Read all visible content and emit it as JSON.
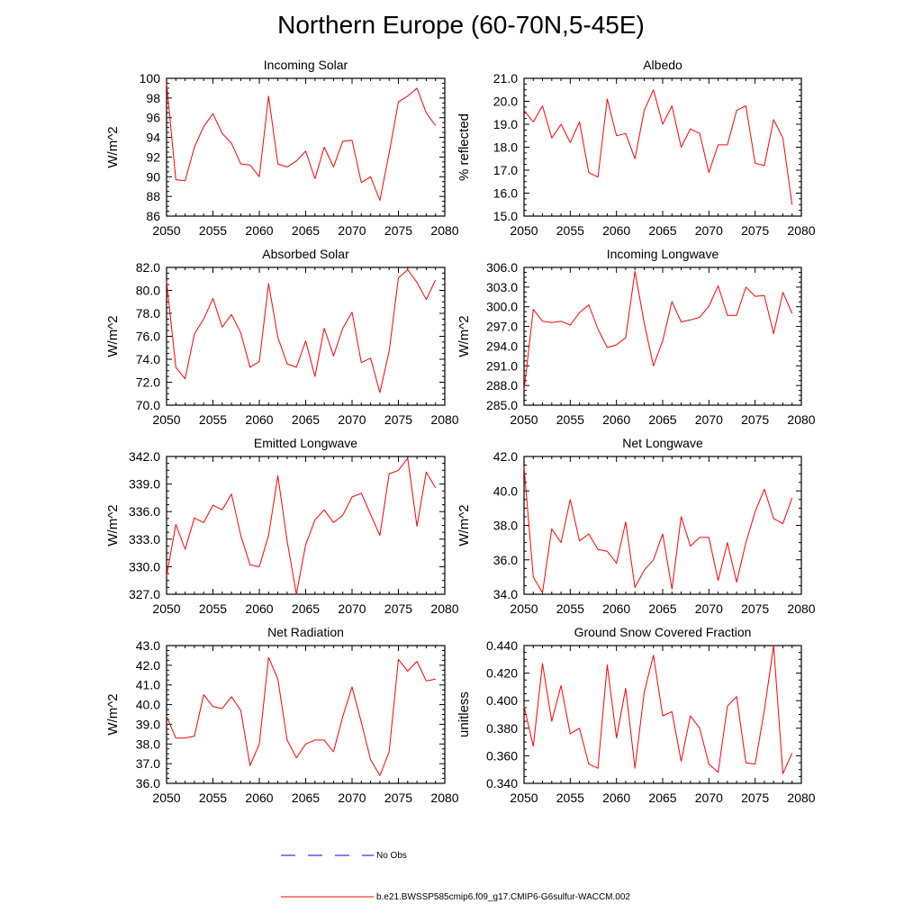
{
  "title": "Northern Europe (60-70N,5-45E)",
  "colors": {
    "series": "#ff0000",
    "obs": "#0000ff",
    "axis": "#000000"
  },
  "legend": {
    "obs_label": "No Obs",
    "model_label": "b.e21.BWSSP585cmip6.f09_g17.CMIP6-G6sulfur-WACCM.002"
  },
  "chart_data": [
    {
      "type": "line",
      "title": "Incoming Solar",
      "ylabel": "W/m^2",
      "xlim": [
        2050,
        2080
      ],
      "ylim": [
        86,
        100
      ],
      "xticks": [
        2050,
        2055,
        2060,
        2065,
        2070,
        2075,
        2080
      ],
      "xtick_labels": [
        "2050",
        "2055",
        "2060",
        "2065",
        "2070",
        "2075",
        "2080"
      ],
      "yticks": [
        86,
        88,
        90,
        92,
        94,
        96,
        98,
        100
      ],
      "ytick_labels": [
        "86",
        "88",
        "90",
        "92",
        "94",
        "96",
        "98",
        "100"
      ],
      "x": [
        2050,
        2051,
        2052,
        2053,
        2054,
        2055,
        2056,
        2057,
        2058,
        2059,
        2060,
        2061,
        2062,
        2063,
        2064,
        2065,
        2066,
        2067,
        2068,
        2069,
        2070,
        2071,
        2072,
        2073,
        2074,
        2075,
        2076,
        2077,
        2078,
        2079
      ],
      "series": [
        {
          "values": [
            99.5,
            89.7,
            89.6,
            93.0,
            95.1,
            96.4,
            94.4,
            93.4,
            91.3,
            91.2,
            90.0,
            98.2,
            91.3,
            91.0,
            91.6,
            92.6,
            89.8,
            93.0,
            91.0,
            93.6,
            93.7,
            89.4,
            90.0,
            87.6,
            92.4,
            97.6,
            98.2,
            99.0,
            96.5,
            95.2
          ]
        }
      ]
    },
    {
      "type": "line",
      "title": "Albedo",
      "ylabel": "% reflected",
      "xlim": [
        2050,
        2080
      ],
      "ylim": [
        15.0,
        21.0
      ],
      "xticks": [
        2050,
        2055,
        2060,
        2065,
        2070,
        2075,
        2080
      ],
      "xtick_labels": [
        "2050",
        "2055",
        "2060",
        "2065",
        "2070",
        "2075",
        "2080"
      ],
      "yticks": [
        15,
        16,
        17,
        18,
        19,
        20,
        21
      ],
      "ytick_labels": [
        "15.0",
        "16.0",
        "17.0",
        "18.0",
        "19.0",
        "20.0",
        "21.0"
      ],
      "x": [
        2050,
        2051,
        2052,
        2053,
        2054,
        2055,
        2056,
        2057,
        2058,
        2059,
        2060,
        2061,
        2062,
        2063,
        2064,
        2065,
        2066,
        2067,
        2068,
        2069,
        2070,
        2071,
        2072,
        2073,
        2074,
        2075,
        2076,
        2077,
        2078,
        2079
      ],
      "series": [
        {
          "values": [
            19.6,
            19.1,
            19.8,
            18.4,
            19.0,
            18.2,
            19.1,
            16.9,
            16.7,
            20.1,
            18.5,
            18.6,
            17.5,
            19.6,
            20.5,
            19.0,
            19.8,
            18.0,
            18.8,
            18.6,
            16.9,
            18.1,
            18.1,
            19.6,
            19.8,
            17.3,
            17.2,
            19.2,
            18.4,
            15.5
          ]
        }
      ]
    },
    {
      "type": "line",
      "title": "Absorbed Solar",
      "ylabel": "W/m^2",
      "xlim": [
        2050,
        2080
      ],
      "ylim": [
        70.0,
        82.0
      ],
      "xticks": [
        2050,
        2055,
        2060,
        2065,
        2070,
        2075,
        2080
      ],
      "xtick_labels": [
        "2050",
        "2055",
        "2060",
        "2065",
        "2070",
        "2075",
        "2080"
      ],
      "yticks": [
        70,
        72,
        74,
        76,
        78,
        80,
        82
      ],
      "ytick_labels": [
        "70.0",
        "72.0",
        "74.0",
        "76.0",
        "78.0",
        "80.0",
        "82.0"
      ],
      "x": [
        2050,
        2051,
        2052,
        2053,
        2054,
        2055,
        2056,
        2057,
        2058,
        2059,
        2060,
        2061,
        2062,
        2063,
        2064,
        2065,
        2066,
        2067,
        2068,
        2069,
        2070,
        2071,
        2072,
        2073,
        2074,
        2075,
        2076,
        2077,
        2078,
        2079
      ],
      "series": [
        {
          "values": [
            80.8,
            73.3,
            72.3,
            76.2,
            77.5,
            79.3,
            76.8,
            77.9,
            76.3,
            73.3,
            73.8,
            80.6,
            75.9,
            73.6,
            73.3,
            75.6,
            72.5,
            76.7,
            74.3,
            76.7,
            78.1,
            73.7,
            74.1,
            71.1,
            74.7,
            81.1,
            81.8,
            80.7,
            79.2,
            80.9
          ]
        }
      ]
    },
    {
      "type": "line",
      "title": "Incoming Longwave",
      "ylabel": "W/m^2",
      "xlim": [
        2050,
        2080
      ],
      "ylim": [
        285.0,
        306.0
      ],
      "xticks": [
        2050,
        2055,
        2060,
        2065,
        2070,
        2075,
        2080
      ],
      "xtick_labels": [
        "2050",
        "2055",
        "2060",
        "2065",
        "2070",
        "2075",
        "2080"
      ],
      "yticks": [
        285,
        288,
        291,
        294,
        297,
        300,
        303,
        306
      ],
      "ytick_labels": [
        "285.0",
        "288.0",
        "291.0",
        "294.0",
        "297.0",
        "300.0",
        "303.0",
        "306.0"
      ],
      "x": [
        2050,
        2051,
        2052,
        2053,
        2054,
        2055,
        2056,
        2057,
        2058,
        2059,
        2060,
        2061,
        2062,
        2063,
        2064,
        2065,
        2066,
        2067,
        2068,
        2069,
        2070,
        2071,
        2072,
        2073,
        2074,
        2075,
        2076,
        2077,
        2078,
        2079
      ],
      "series": [
        {
          "values": [
            287.2,
            299.6,
            297.8,
            297.6,
            297.8,
            297.2,
            299.1,
            300.3,
            296.6,
            293.8,
            294.2,
            295.3,
            305.4,
            297.5,
            291.0,
            294.8,
            300.8,
            297.7,
            298.0,
            298.4,
            300.1,
            303.2,
            298.7,
            298.7,
            303.0,
            301.6,
            301.7,
            295.9,
            302.2,
            299.0
          ]
        }
      ]
    },
    {
      "type": "line",
      "title": "Emitted Longwave",
      "ylabel": "W/m^2",
      "xlim": [
        2050,
        2080
      ],
      "ylim": [
        327.0,
        342.0
      ],
      "xticks": [
        2050,
        2055,
        2060,
        2065,
        2070,
        2075,
        2080
      ],
      "xtick_labels": [
        "2050",
        "2055",
        "2060",
        "2065",
        "2070",
        "2075",
        "2080"
      ],
      "yticks": [
        327,
        330,
        333,
        336,
        339,
        342
      ],
      "ytick_labels": [
        "327.0",
        "330.0",
        "333.0",
        "336.0",
        "339.0",
        "342.0"
      ],
      "x": [
        2050,
        2051,
        2052,
        2053,
        2054,
        2055,
        2056,
        2057,
        2058,
        2059,
        2060,
        2061,
        2062,
        2063,
        2064,
        2065,
        2066,
        2067,
        2068,
        2069,
        2070,
        2071,
        2072,
        2073,
        2074,
        2075,
        2076,
        2077,
        2078,
        2079
      ],
      "series": [
        {
          "values": [
            329.0,
            334.6,
            331.9,
            335.3,
            334.8,
            336.7,
            336.2,
            337.9,
            333.4,
            330.2,
            330.0,
            333.4,
            339.9,
            332.8,
            327.0,
            332.4,
            335.1,
            336.2,
            334.8,
            335.6,
            337.6,
            338.0,
            335.7,
            333.4,
            340.1,
            340.5,
            341.8,
            334.4,
            340.3,
            338.6
          ]
        }
      ]
    },
    {
      "type": "line",
      "title": "Net Longwave",
      "ylabel": "W/m^2",
      "xlim": [
        2050,
        2080
      ],
      "ylim": [
        34.0,
        42.0
      ],
      "xticks": [
        2050,
        2055,
        2060,
        2065,
        2070,
        2075,
        2080
      ],
      "xtick_labels": [
        "2050",
        "2055",
        "2060",
        "2065",
        "2070",
        "2075",
        "2080"
      ],
      "yticks": [
        34,
        36,
        38,
        40,
        42
      ],
      "ytick_labels": [
        "34.0",
        "36.0",
        "38.0",
        "40.0",
        "42.0"
      ],
      "x": [
        2050,
        2051,
        2052,
        2053,
        2054,
        2055,
        2056,
        2057,
        2058,
        2059,
        2060,
        2061,
        2062,
        2063,
        2064,
        2065,
        2066,
        2067,
        2068,
        2069,
        2070,
        2071,
        2072,
        2073,
        2074,
        2075,
        2076,
        2077,
        2078,
        2079
      ],
      "series": [
        {
          "values": [
            41.4,
            35.0,
            34.1,
            37.8,
            37.0,
            39.5,
            37.1,
            37.5,
            36.6,
            36.5,
            35.8,
            38.2,
            34.4,
            35.4,
            36.0,
            37.5,
            34.3,
            38.5,
            36.8,
            37.3,
            37.3,
            34.8,
            37.0,
            34.7,
            37.0,
            38.8,
            40.1,
            38.4,
            38.1,
            39.6
          ]
        }
      ]
    },
    {
      "type": "line",
      "title": "Net Radiation",
      "ylabel": "W/m^2",
      "xlim": [
        2050,
        2080
      ],
      "ylim": [
        36.0,
        43.0
      ],
      "xticks": [
        2050,
        2055,
        2060,
        2065,
        2070,
        2075,
        2080
      ],
      "xtick_labels": [
        "2050",
        "2055",
        "2060",
        "2065",
        "2070",
        "2075",
        "2080"
      ],
      "yticks": [
        36,
        37,
        38,
        39,
        40,
        41,
        42,
        43
      ],
      "ytick_labels": [
        "36.0",
        "37.0",
        "38.0",
        "39.0",
        "40.0",
        "41.0",
        "42.0",
        "43.0"
      ],
      "x": [
        2050,
        2051,
        2052,
        2053,
        2054,
        2055,
        2056,
        2057,
        2058,
        2059,
        2060,
        2061,
        2062,
        2063,
        2064,
        2065,
        2066,
        2067,
        2068,
        2069,
        2070,
        2071,
        2072,
        2073,
        2074,
        2075,
        2076,
        2077,
        2078,
        2079
      ],
      "series": [
        {
          "values": [
            39.4,
            38.3,
            38.3,
            38.4,
            40.5,
            39.9,
            39.8,
            40.4,
            39.7,
            36.9,
            38.0,
            42.4,
            41.3,
            38.2,
            37.3,
            38.0,
            38.2,
            38.2,
            37.6,
            39.4,
            40.9,
            39.1,
            37.2,
            36.4,
            37.6,
            42.3,
            41.7,
            42.2,
            41.2,
            41.3
          ]
        }
      ]
    },
    {
      "type": "line",
      "title": "Ground Snow Covered Fraction",
      "ylabel": "unitless",
      "xlim": [
        2050,
        2080
      ],
      "ylim": [
        0.34,
        0.44
      ],
      "xticks": [
        2050,
        2055,
        2060,
        2065,
        2070,
        2075,
        2080
      ],
      "xtick_labels": [
        "2050",
        "2055",
        "2060",
        "2065",
        "2070",
        "2075",
        "2080"
      ],
      "yticks": [
        0.34,
        0.36,
        0.38,
        0.4,
        0.42,
        0.44
      ],
      "ytick_labels": [
        "0.340",
        "0.360",
        "0.380",
        "0.400",
        "0.420",
        "0.440"
      ],
      "x": [
        2050,
        2051,
        2052,
        2053,
        2054,
        2055,
        2056,
        2057,
        2058,
        2059,
        2060,
        2061,
        2062,
        2063,
        2064,
        2065,
        2066,
        2067,
        2068,
        2069,
        2070,
        2071,
        2072,
        2073,
        2074,
        2075,
        2076,
        2077,
        2078,
        2079
      ],
      "series": [
        {
          "values": [
            0.396,
            0.367,
            0.427,
            0.385,
            0.411,
            0.376,
            0.38,
            0.354,
            0.351,
            0.426,
            0.373,
            0.409,
            0.351,
            0.406,
            0.433,
            0.389,
            0.392,
            0.356,
            0.389,
            0.38,
            0.354,
            0.348,
            0.396,
            0.403,
            0.355,
            0.354,
            0.393,
            0.44,
            0.347,
            0.362
          ]
        }
      ]
    }
  ]
}
